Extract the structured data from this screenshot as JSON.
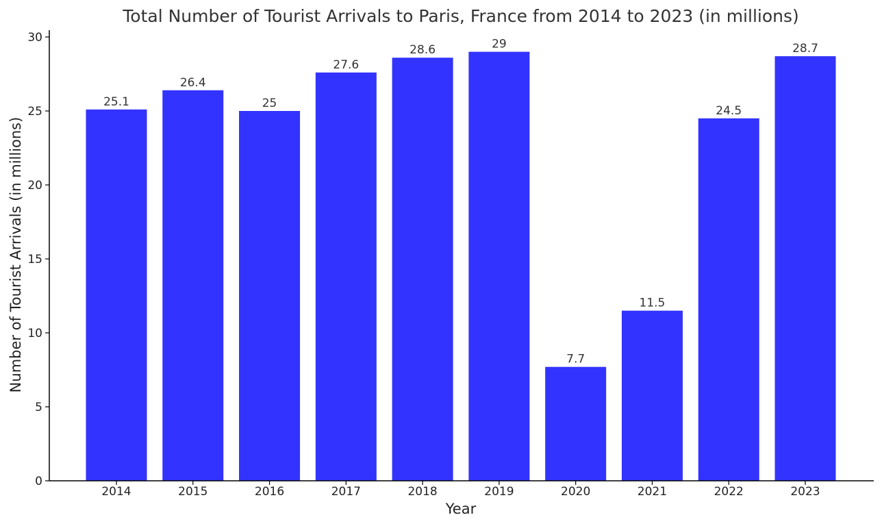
{
  "chart_data": {
    "type": "bar",
    "title": "Total Number of Tourist Arrivals to Paris, France from 2014 to 2023 (in millions)",
    "xlabel": "Year",
    "ylabel": "Number of Tourist Arrivals (in millions)",
    "categories": [
      "2014",
      "2015",
      "2016",
      "2017",
      "2018",
      "2019",
      "2020",
      "2021",
      "2022",
      "2023"
    ],
    "values": [
      25.1,
      26.4,
      25,
      27.6,
      28.6,
      29,
      7.7,
      11.5,
      24.5,
      28.7
    ],
    "value_labels": [
      "25.1",
      "26.4",
      "25",
      "27.6",
      "28.6",
      "29",
      "7.7",
      "11.5",
      "24.5",
      "28.7"
    ],
    "ylim": [
      0,
      30
    ],
    "yticks": [
      0,
      5,
      10,
      15,
      20,
      25,
      30
    ],
    "grid": false,
    "bar_color": "#3333ff"
  }
}
